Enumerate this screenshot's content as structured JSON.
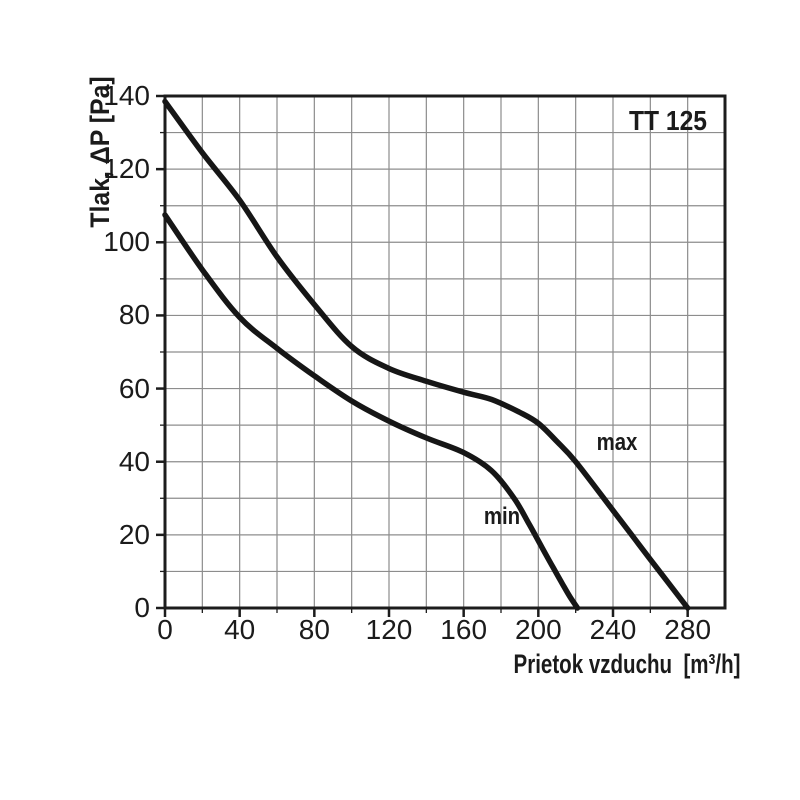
{
  "chart_data": {
    "type": "line",
    "title": "TT 125",
    "xlabel": "Prietok vzduchu  [m³/h]",
    "ylabel": "Tlak, ΔP [Pa]",
    "xlim": [
      0,
      300
    ],
    "ylim": [
      0,
      140
    ],
    "x_tick_labels": [
      0,
      40,
      80,
      120,
      160,
      200,
      240,
      280
    ],
    "x_minor_tick_step": 20,
    "y_tick_labels": [
      0,
      20,
      40,
      60,
      80,
      100,
      120,
      140
    ],
    "y_minor_tick_step": 10,
    "grid": "on",
    "legend_position": "labels drawn beside curves",
    "series": [
      {
        "name": "max",
        "label_at": [
          242,
          45
        ],
        "points": [
          [
            0,
            138.5
          ],
          [
            20,
            124.5
          ],
          [
            40,
            111.5
          ],
          [
            60,
            96
          ],
          [
            80,
            83
          ],
          [
            100,
            71.5
          ],
          [
            120,
            65.5
          ],
          [
            140,
            62
          ],
          [
            160,
            59
          ],
          [
            175,
            57
          ],
          [
            190,
            53.5
          ],
          [
            200,
            50.5
          ],
          [
            210,
            45.5
          ],
          [
            220,
            40
          ],
          [
            240,
            26.7
          ],
          [
            260,
            13.3
          ],
          [
            280,
            0
          ]
        ]
      },
      {
        "name": "min",
        "label_at": [
          180.5,
          25
        ],
        "points": [
          [
            0,
            107.5
          ],
          [
            20,
            92.5
          ],
          [
            40,
            79.5
          ],
          [
            60,
            71
          ],
          [
            80,
            63.5
          ],
          [
            100,
            56.6
          ],
          [
            120,
            51.1
          ],
          [
            140,
            46.5
          ],
          [
            160,
            42.5
          ],
          [
            175,
            37.5
          ],
          [
            187,
            30
          ],
          [
            195,
            23
          ],
          [
            202,
            16.5
          ],
          [
            208,
            11
          ],
          [
            213,
            6.5
          ],
          [
            217,
            3
          ],
          [
            221,
            0
          ]
        ]
      }
    ],
    "colors": {
      "curve": "#161616",
      "grid": "#8d8d8d",
      "axis": "#1c1c1c",
      "text": "#1b1b1b",
      "background": "#ffffff"
    }
  }
}
